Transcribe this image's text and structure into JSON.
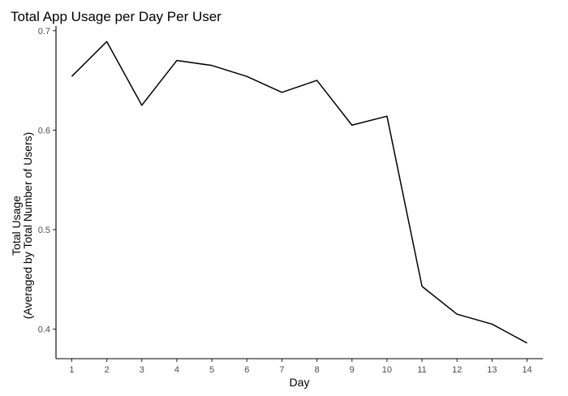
{
  "chart_data": {
    "type": "line",
    "title": "Total App Usage per Day Per User",
    "xlabel": "Day",
    "ylabel_lines": [
      "Total Usage",
      "(Averaged by Total Number of Users)"
    ],
    "x": [
      1,
      2,
      3,
      4,
      5,
      6,
      7,
      8,
      9,
      10,
      11,
      12,
      13,
      14
    ],
    "y": [
      0.654,
      0.689,
      0.625,
      0.67,
      0.665,
      0.654,
      0.638,
      0.65,
      0.605,
      0.614,
      0.443,
      0.415,
      0.405,
      0.386
    ],
    "xlim": [
      0.55,
      14.45
    ],
    "ylim": [
      0.3703,
      0.7047
    ],
    "xticks": [
      "1",
      "2",
      "3",
      "4",
      "5",
      "6",
      "7",
      "8",
      "9",
      "10",
      "11",
      "12",
      "13",
      "14"
    ],
    "yticks": [
      0.4,
      0.5,
      0.6,
      0.7
    ],
    "ytick_labels": [
      "0.4",
      "0.5",
      "0.6",
      "0.7"
    ],
    "grid": false,
    "legend": "none",
    "colors": {
      "line": "#000000",
      "axis": "#000000",
      "tick_label": "#4d4d4d",
      "background": "#ffffff"
    }
  }
}
